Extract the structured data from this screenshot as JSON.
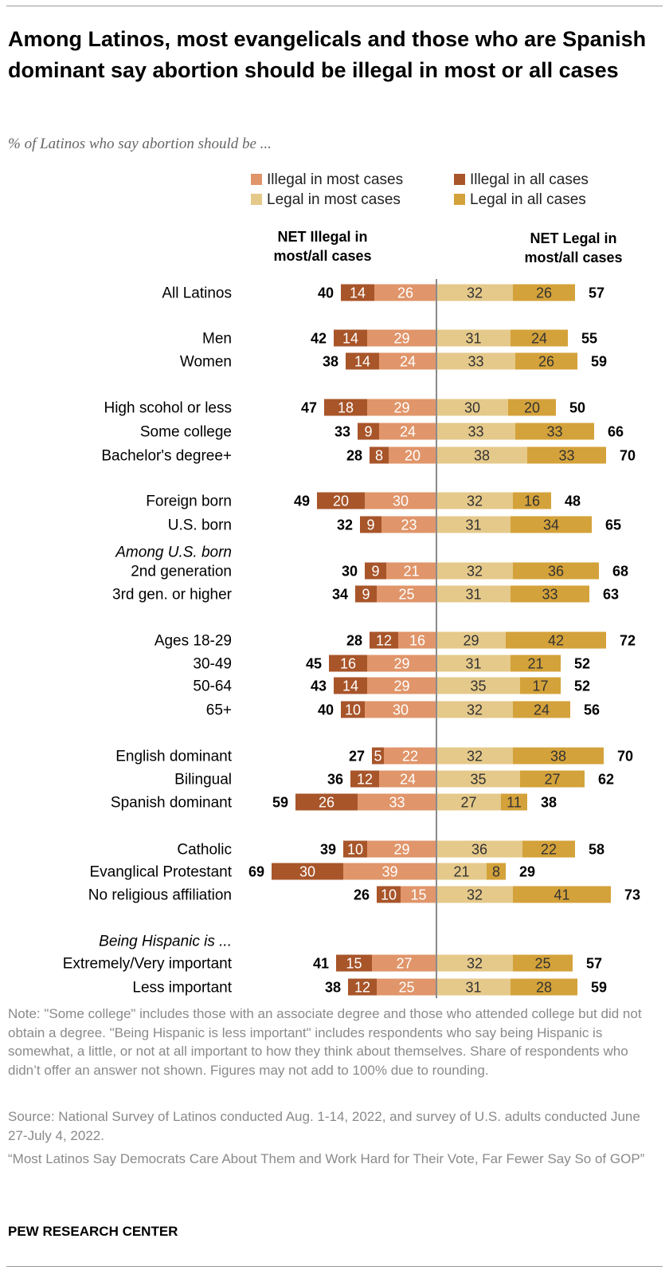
{
  "title": "Among Latinos, most evangelicals and those who are Spanish dominant say abortion should be illegal in most or all cases",
  "subtitle": "% of Latinos who say abortion should be ...",
  "colors": {
    "illegal_most": "#e0956a",
    "illegal_all": "#a8552a",
    "legal_most": "#e5c98a",
    "legal_all": "#d4a23a",
    "center_line": "#8a8a8a"
  },
  "legend": {
    "illegal_most": "Illegal in most cases",
    "illegal_all": "Illegal in all cases",
    "legal_most": "Legal in most cases",
    "legal_all": "Legal in all cases"
  },
  "column_headers": {
    "net_illegal": [
      "NET Illegal in",
      "most/all cases"
    ],
    "net_legal": [
      "NET Legal in",
      "most/all cases"
    ]
  },
  "chart_data": {
    "type": "bar",
    "orientation": "horizontal-diverging",
    "series": [
      {
        "name": "Illegal in all cases",
        "key": "illegal_all"
      },
      {
        "name": "Illegal in most cases",
        "key": "illegal_most"
      },
      {
        "name": "Legal in most cases",
        "key": "legal_most"
      },
      {
        "name": "Legal in all cases",
        "key": "legal_all"
      }
    ],
    "section_labels": [
      "Among U.S. born",
      "Being Hispanic is ..."
    ],
    "rows": [
      {
        "label": "All Latinos",
        "illegal_all": 14,
        "illegal_most": 26,
        "legal_most": 32,
        "legal_all": 26,
        "net_illegal": 40,
        "net_legal": 57
      },
      {
        "label": "Men",
        "illegal_all": 14,
        "illegal_most": 29,
        "legal_most": 31,
        "legal_all": 24,
        "net_illegal": 42,
        "net_legal": 55
      },
      {
        "label": "Women",
        "illegal_all": 14,
        "illegal_most": 24,
        "legal_most": 33,
        "legal_all": 26,
        "net_illegal": 38,
        "net_legal": 59
      },
      {
        "label": "High scohol or less",
        "illegal_all": 18,
        "illegal_most": 29,
        "legal_most": 30,
        "legal_all": 20,
        "net_illegal": 47,
        "net_legal": 50
      },
      {
        "label": "Some college",
        "illegal_all": 9,
        "illegal_most": 24,
        "legal_most": 33,
        "legal_all": 33,
        "net_illegal": 33,
        "net_legal": 66
      },
      {
        "label": "Bachelor's degree+",
        "illegal_all": 8,
        "illegal_most": 20,
        "legal_most": 38,
        "legal_all": 33,
        "net_illegal": 28,
        "net_legal": 70
      },
      {
        "label": "Foreign born",
        "illegal_all": 20,
        "illegal_most": 30,
        "legal_most": 32,
        "legal_all": 16,
        "net_illegal": 49,
        "net_legal": 48
      },
      {
        "label": "U.S. born",
        "illegal_all": 9,
        "illegal_most": 23,
        "legal_most": 31,
        "legal_all": 34,
        "net_illegal": 32,
        "net_legal": 65
      },
      {
        "label": "2nd generation",
        "illegal_all": 9,
        "illegal_most": 21,
        "legal_most": 32,
        "legal_all": 36,
        "net_illegal": 30,
        "net_legal": 68
      },
      {
        "label": "3rd gen. or higher",
        "illegal_all": 9,
        "illegal_most": 25,
        "legal_most": 31,
        "legal_all": 33,
        "net_illegal": 34,
        "net_legal": 63
      },
      {
        "label": "Ages 18-29",
        "illegal_all": 12,
        "illegal_most": 16,
        "legal_most": 29,
        "legal_all": 42,
        "net_illegal": 28,
        "net_legal": 72
      },
      {
        "label": "30-49",
        "illegal_all": 16,
        "illegal_most": 29,
        "legal_most": 31,
        "legal_all": 21,
        "net_illegal": 45,
        "net_legal": 52
      },
      {
        "label": "50-64",
        "illegal_all": 14,
        "illegal_most": 29,
        "legal_most": 35,
        "legal_all": 17,
        "net_illegal": 43,
        "net_legal": 52
      },
      {
        "label": "65+",
        "illegal_all": 10,
        "illegal_most": 30,
        "legal_most": 32,
        "legal_all": 24,
        "net_illegal": 40,
        "net_legal": 56
      },
      {
        "label": "English dominant",
        "illegal_all": 5,
        "illegal_most": 22,
        "legal_most": 32,
        "legal_all": 38,
        "net_illegal": 27,
        "net_legal": 70
      },
      {
        "label": "Bilingual",
        "illegal_all": 12,
        "illegal_most": 24,
        "legal_most": 35,
        "legal_all": 27,
        "net_illegal": 36,
        "net_legal": 62
      },
      {
        "label": "Spanish dominant",
        "illegal_all": 26,
        "illegal_most": 33,
        "legal_most": 27,
        "legal_all": 11,
        "net_illegal": 59,
        "net_legal": 38
      },
      {
        "label": "Catholic",
        "illegal_all": 10,
        "illegal_most": 29,
        "legal_most": 36,
        "legal_all": 22,
        "net_illegal": 39,
        "net_legal": 58
      },
      {
        "label": "Evanglical Protestant",
        "illegal_all": 30,
        "illegal_most": 39,
        "legal_most": 21,
        "legal_all": 8,
        "net_illegal": 69,
        "net_legal": 29
      },
      {
        "label": "No religious affiliation",
        "illegal_all": 10,
        "illegal_most": 15,
        "legal_most": 32,
        "legal_all": 41,
        "net_illegal": 26,
        "net_legal": 73
      },
      {
        "label": "Extremely/Very important",
        "illegal_all": 15,
        "illegal_most": 27,
        "legal_most": 32,
        "legal_all": 25,
        "net_illegal": 41,
        "net_legal": 57
      },
      {
        "label": "Less important",
        "illegal_all": 12,
        "illegal_most": 25,
        "legal_most": 31,
        "legal_all": 28,
        "net_illegal": 38,
        "net_legal": 59
      }
    ]
  },
  "notes": [
    "Note: \"Some college\" includes those with an associate degree and those who attended college but did not obtain a degree. \"Being Hispanic is less important\" includes respondents who say being Hispanic is somewhat, a little, or not at all important to how they think about themselves. Share of respondents who didn’t offer an answer not shown. Figures may not add to 100% due to rounding.",
    "Source: National Survey of Latinos conducted Aug. 1-14, 2022, and survey of U.S. adults conducted June 27-July 4, 2022.",
    "“Most Latinos Say Democrats Care About Them and Work Hard for Their Vote, Far Fewer Say So of GOP”"
  ],
  "source_org": "PEW RESEARCH CENTER"
}
